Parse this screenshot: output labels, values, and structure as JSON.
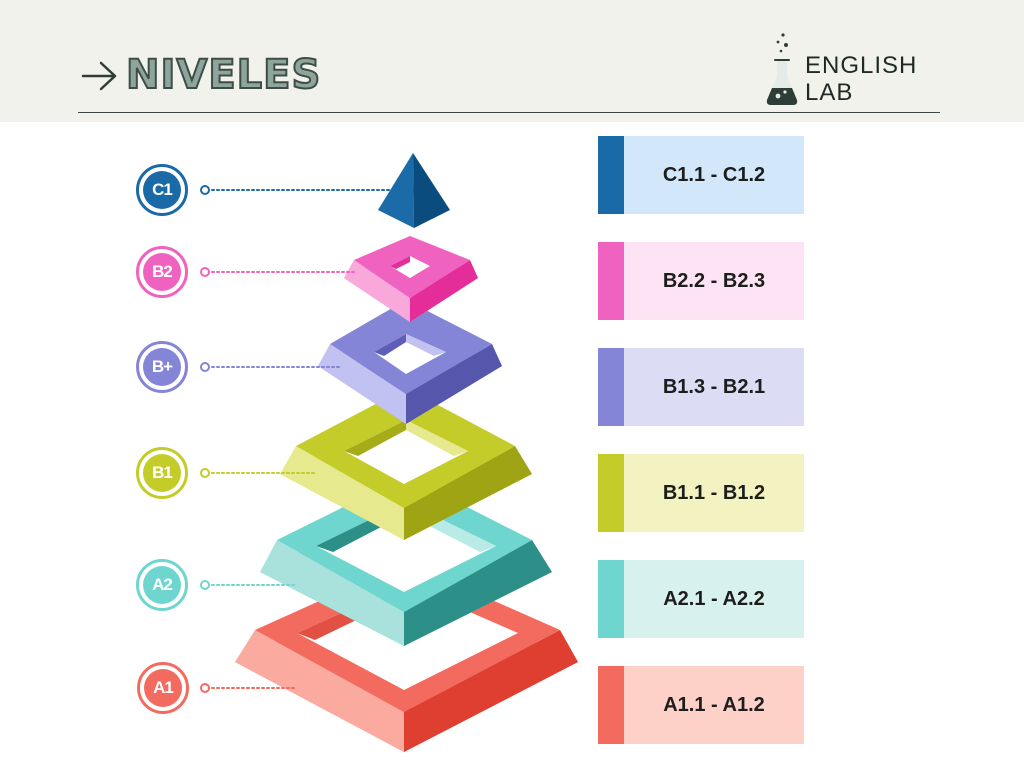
{
  "header": {
    "title": "NIVELES",
    "brand_line1": "ENGLISH",
    "brand_line2": "LAB"
  },
  "levels": [
    {
      "badge": "C1",
      "range": "C1.1 - C1.2",
      "color": "#1a6aa8",
      "light": "#d3e7fa"
    },
    {
      "badge": "B2",
      "range": "B2.2 - B2.3",
      "color": "#f062c0",
      "light": "#fde3f3"
    },
    {
      "badge": "B+",
      "range": "B1.3 - B2.1",
      "color": "#8585d8",
      "light": "#dcdcf5"
    },
    {
      "badge": "B1",
      "range": "B1.1 - B1.2",
      "color": "#c4cc2a",
      "light": "#f2f3c0"
    },
    {
      "badge": "A2",
      "range": "A2.1 - A2.2",
      "color": "#6fd6cf",
      "light": "#d6f1ee"
    },
    {
      "badge": "A1",
      "range": "A1.1 - A1.2",
      "color": "#f36a5e",
      "light": "#fdd0c8"
    }
  ]
}
